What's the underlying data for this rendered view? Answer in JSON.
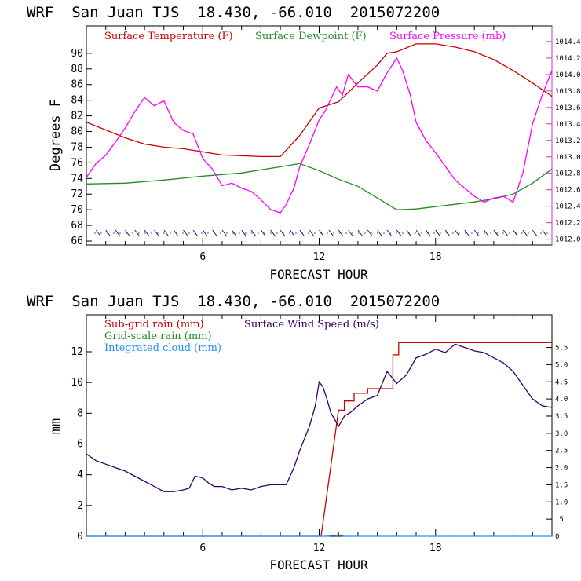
{
  "chart_data": [
    {
      "type": "line",
      "title": "WRF  San Juan TJS  18.430, -66.010  2015072200",
      "xlabel": "FORECAST HOUR",
      "ylabel": "Degrees F",
      "xlim": [
        0,
        24
      ],
      "ylim": [
        65.5,
        93.5
      ],
      "x_ticks": [
        "6",
        "12",
        "18"
      ],
      "y_ticks": [
        "66",
        "68",
        "70",
        "72",
        "74",
        "76",
        "78",
        "80",
        "82",
        "84",
        "86",
        "88",
        "90"
      ],
      "y2_ticks": [
        "1012.0",
        "1012.2",
        "1012.4",
        "1012.6",
        "1012.8",
        "1013.0",
        "1013.2",
        "1013.4",
        "1013.6",
        "1013.8",
        "1014.0",
        "1014.2",
        "1014.4"
      ],
      "y2lim": [
        1011.93,
        1014.59
      ],
      "colors": {
        "temperature": "#cc0000",
        "dewpoint": "#228b22",
        "pressure": "#ff00ff",
        "wind_barbs": "#330066",
        "secondary_axis": "#cc33cc"
      },
      "legend": [
        "Surface Temperature (F)",
        "Surface Dewpoint (F)",
        "Surface Pressure (mb)"
      ],
      "series": [
        {
          "name": "Surface Temperature (F)",
          "axis": "left",
          "x": [
            0,
            1,
            2,
            3,
            4,
            5,
            6,
            7,
            8,
            9,
            10,
            11,
            12,
            12.5,
            13,
            14,
            15,
            15.5,
            16,
            17,
            18,
            19,
            20,
            21,
            22,
            23,
            24
          ],
          "values": [
            81.2,
            80.2,
            79.2,
            78.4,
            78.0,
            77.8,
            77.4,
            77.0,
            76.9,
            76.8,
            76.8,
            79.5,
            83.0,
            83.4,
            83.8,
            86.2,
            88.5,
            90.0,
            90.2,
            91.2,
            91.2,
            90.8,
            90.2,
            89.2,
            87.8,
            86.2,
            84.5
          ]
        },
        {
          "name": "Surface Dewpoint (F)",
          "axis": "left",
          "x": [
            0,
            2,
            4,
            6,
            8,
            10,
            11,
            12,
            13,
            14,
            15,
            16,
            17,
            18,
            19,
            20,
            21,
            22,
            23,
            24
          ],
          "values": [
            73.3,
            73.4,
            73.8,
            74.3,
            74.7,
            75.5,
            75.9,
            75.0,
            73.9,
            73.0,
            71.5,
            70.0,
            70.1,
            70.4,
            70.7,
            71.0,
            71.4,
            72.0,
            73.4,
            75.2
          ]
        },
        {
          "name": "Surface Pressure (mb)",
          "axis": "right",
          "x": [
            0,
            0.5,
            1,
            1.5,
            2,
            2.5,
            3,
            3.5,
            4,
            4.5,
            5,
            5.5,
            6,
            6.5,
            7,
            7.5,
            8,
            8.5,
            9,
            9.5,
            10,
            10.3,
            10.7,
            11,
            11.5,
            12,
            12.3,
            12.6,
            12.9,
            13.2,
            13.5,
            14,
            14.5,
            15,
            15.5,
            16,
            16.3,
            16.7,
            17,
            17.5,
            18,
            19,
            20,
            20.5,
            21,
            21.5,
            22,
            22.5,
            23,
            23.5,
            24
          ],
          "values": [
            1012.75,
            1012.92,
            1013.02,
            1013.18,
            1013.35,
            1013.55,
            1013.72,
            1013.62,
            1013.68,
            1013.42,
            1013.32,
            1013.28,
            1012.98,
            1012.85,
            1012.65,
            1012.68,
            1012.62,
            1012.58,
            1012.48,
            1012.36,
            1012.32,
            1012.42,
            1012.62,
            1012.88,
            1013.15,
            1013.45,
            1013.55,
            1013.7,
            1013.85,
            1013.75,
            1014.0,
            1013.85,
            1013.85,
            1013.8,
            1014.02,
            1014.2,
            1014.05,
            1013.75,
            1013.42,
            1013.2,
            1013.05,
            1012.72,
            1012.52,
            1012.45,
            1012.5,
            1012.52,
            1012.45,
            1012.8,
            1013.4,
            1013.75,
            1014.05
          ]
        }
      ]
    },
    {
      "type": "line",
      "title": "WRF  San Juan TJS  18.430, -66.010  2015072200",
      "xlabel": "FORECAST HOUR",
      "ylabel": "mm",
      "xlim": [
        0,
        24
      ],
      "ylim": [
        0,
        14.4
      ],
      "x_ticks": [
        "6",
        "12",
        "18"
      ],
      "y_ticks": [
        "0",
        "2",
        "4",
        "6",
        "8",
        "10",
        "12"
      ],
      "y2_ticks": [
        "0",
        ".5",
        "1.0",
        "1.5",
        "2.0",
        "2.5",
        "3.0",
        "3.5",
        "4.0",
        "4.5",
        "5.0",
        "5.5"
      ],
      "y2lim": [
        0,
        6.45
      ],
      "colors": {
        "subgrid": "#cc0000",
        "gridscale": "#228b22",
        "cloud": "#1e90ff",
        "wind": "#330066"
      },
      "legend": [
        "Sub-grid rain (mm)",
        "Grid-scale rain (mm)",
        "Integrated cloud (mm)",
        "Surface Wind Speed (m/s)"
      ],
      "series": [
        {
          "name": "Sub-grid rain (mm)",
          "axis": "left",
          "x": [
            0,
            12,
            12.1,
            13,
            13.3,
            13.3,
            13.8,
            13.8,
            14.5,
            14.5,
            15.8,
            15.8,
            16.1,
            16.1,
            24
          ],
          "values": [
            0,
            0,
            0,
            8.2,
            8.2,
            8.8,
            8.8,
            9.3,
            9.3,
            9.6,
            9.6,
            11.8,
            11.8,
            12.6,
            12.6
          ]
        },
        {
          "name": "Integrated cloud (mm)",
          "axis": "left",
          "x": [
            0,
            12.4,
            12.7,
            13.0,
            13.3,
            24
          ],
          "values": [
            0,
            0,
            0.05,
            0.1,
            0,
            0
          ]
        },
        {
          "name": "Surface Wind Speed (m/s)",
          "axis": "right",
          "x": [
            0,
            0.5,
            1,
            1.5,
            2,
            2.5,
            3,
            3.5,
            4,
            4.5,
            5,
            5.3,
            5.6,
            6,
            6.3,
            6.6,
            7,
            7.5,
            8,
            8.5,
            9,
            9.5,
            10,
            10.3,
            10.7,
            11,
            11.5,
            11.8,
            12,
            12.2,
            12.4,
            12.6,
            12.8,
            13.0,
            13.3,
            13.6,
            14,
            14.5,
            15,
            15.5,
            16,
            16.5,
            17,
            17.5,
            18,
            18.5,
            19,
            19.5,
            20,
            20.5,
            21,
            21.5,
            22,
            22.5,
            23,
            23.5,
            24
          ],
          "values": [
            2.4,
            2.2,
            2.1,
            2.0,
            1.9,
            1.75,
            1.6,
            1.45,
            1.3,
            1.3,
            1.35,
            1.4,
            1.75,
            1.7,
            1.55,
            1.45,
            1.45,
            1.35,
            1.4,
            1.35,
            1.45,
            1.5,
            1.5,
            1.5,
            2.0,
            2.5,
            3.2,
            3.8,
            4.5,
            4.35,
            4.0,
            3.6,
            3.4,
            3.2,
            3.5,
            3.6,
            3.8,
            4.0,
            4.1,
            4.8,
            4.45,
            4.7,
            5.2,
            5.3,
            5.45,
            5.35,
            5.6,
            5.5,
            5.4,
            5.35,
            5.2,
            5.05,
            4.8,
            4.4,
            4.0,
            3.8,
            3.75
          ]
        }
      ]
    }
  ]
}
